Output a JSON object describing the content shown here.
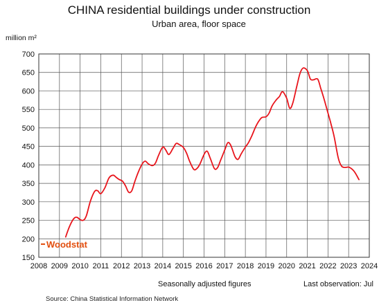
{
  "chart_data": {
    "type": "line",
    "title": "CHINA  residential buildings under construction",
    "subtitle": "Urban area, floor space",
    "ylabel": "million m²",
    "xlim": [
      2008,
      2024
    ],
    "ylim": [
      150,
      700
    ],
    "x_ticks": [
      "2008",
      "2009",
      "2010",
      "2011",
      "2012",
      "2013",
      "2014",
      "2015",
      "2016",
      "2017",
      "2018",
      "2019",
      "2020",
      "2021",
      "2022",
      "2023",
      "2024"
    ],
    "y_ticks": [
      "150",
      "200",
      "250",
      "300",
      "350",
      "400",
      "450",
      "500",
      "550",
      "600",
      "650",
      "700"
    ],
    "grid": true,
    "series": [
      {
        "color": "#e8141b",
        "x": [
          2009.3,
          2009.5,
          2009.7,
          2009.85,
          2010.0,
          2010.15,
          2010.3,
          2010.5,
          2010.7,
          2010.85,
          2011.0,
          2011.2,
          2011.4,
          2011.6,
          2011.75,
          2011.9,
          2012.05,
          2012.2,
          2012.35,
          2012.5,
          2012.65,
          2012.8,
          2013.0,
          2013.15,
          2013.3,
          2013.5,
          2013.65,
          2013.8,
          2014.0,
          2014.15,
          2014.3,
          2014.5,
          2014.65,
          2014.8,
          2015.0,
          2015.15,
          2015.3,
          2015.5,
          2015.65,
          2015.8,
          2016.0,
          2016.15,
          2016.3,
          2016.5,
          2016.65,
          2016.8,
          2017.0,
          2017.15,
          2017.3,
          2017.5,
          2017.65,
          2017.8,
          2018.0,
          2018.15,
          2018.3,
          2018.5,
          2018.65,
          2018.8,
          2019.0,
          2019.15,
          2019.3,
          2019.5,
          2019.65,
          2019.8,
          2020.0,
          2020.15,
          2020.3,
          2020.5,
          2020.65,
          2020.8,
          2021.0,
          2021.15,
          2021.3,
          2021.5,
          2021.65,
          2021.8,
          2022.0,
          2022.15,
          2022.3,
          2022.5,
          2022.65,
          2022.8,
          2023.0,
          2023.15,
          2023.3,
          2023.5
        ],
        "values": [
          205,
          235,
          255,
          258,
          252,
          250,
          262,
          302,
          328,
          330,
          322,
          338,
          365,
          372,
          366,
          360,
          356,
          343,
          326,
          330,
          355,
          378,
          402,
          410,
          403,
          398,
          405,
          426,
          448,
          440,
          428,
          445,
          458,
          455,
          447,
          432,
          410,
          388,
          390,
          402,
          428,
          437,
          418,
          390,
          392,
          412,
          440,
          460,
          452,
          422,
          415,
          430,
          448,
          460,
          477,
          503,
          518,
          528,
          530,
          540,
          560,
          576,
          585,
          598,
          580,
          553,
          568,
          615,
          648,
          662,
          655,
          632,
          630,
          632,
          607,
          580,
          540,
          510,
          476,
          418,
          397,
          393,
          394,
          389,
          380,
          360
        ]
      }
    ],
    "annotations": {
      "note_left": "Seasonally adjusted figures",
      "note_right": "Last observation: Jul",
      "source": "Source: China Statistical Information Network",
      "brand": "Woodstat"
    }
  }
}
